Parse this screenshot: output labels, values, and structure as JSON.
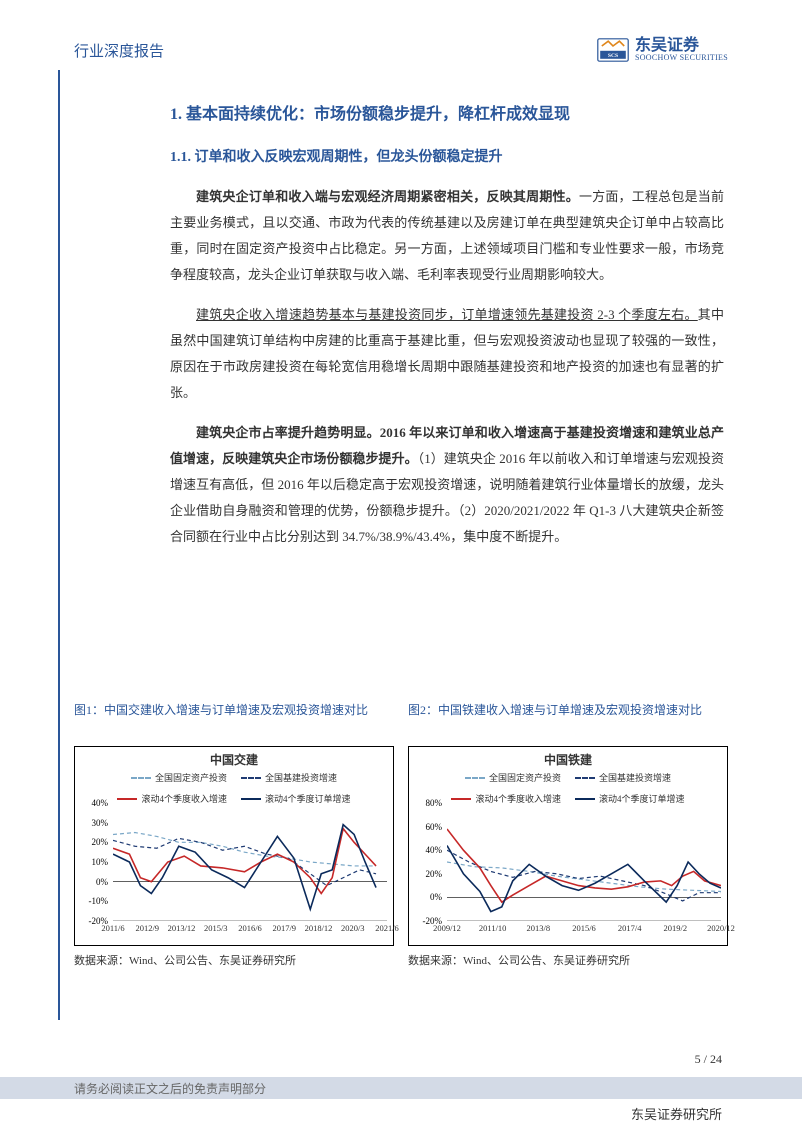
{
  "header": {
    "title": "行业深度报告",
    "logo_cn": "东吴证券",
    "logo_en": "SOOCHOW SECURITIES"
  },
  "headings": {
    "h1": "1.   基本面持续优化：市场份额稳步提升，降杠杆成效显现",
    "h2": "1.1.   订单和收入反映宏观周期性，但龙头份额稳定提升"
  },
  "paras": {
    "p1_b": "建筑央企订单和收入端与宏观经济周期紧密相关，反映其周期性。",
    "p1_t": "一方面，工程总包是当前主要业务模式，且以交通、市政为代表的传统基建以及房建订单在典型建筑央企订单中占较高比重，同时在固定资产投资中占比稳定。另一方面，上述领域项目门槛和专业性要求一般，市场竞争程度较高，龙头企业订单获取与收入端、毛利率表现受行业周期影响较大。",
    "p2_u": "建筑央企收入增速趋势基本与基建投资同步，订单增速领先基建投资 2-3 个季度左右。",
    "p2_t": "其中虽然中国建筑订单结构中房建的比重高于基建比重，但与宏观投资波动也显现了较强的一致性，原因在于市政房建投资在每轮宽信用稳增长周期中跟随基建投资和地产投资的加速也有显著的扩张。",
    "p3_b": "建筑央企市占率提升趋势明显。2016 年以来订单和收入增速高于基建投资增速和建筑业总产值增速，反映建筑央企市场份额稳步提升。",
    "p3_t": "（1）建筑央企 2016 年以前收入和订单增速与宏观投资增速互有高低，但 2016 年以后稳定高于宏观投资增速，说明随着建筑行业体量增长的放缓，龙头企业借助自身融资和管理的优势，份额稳步提升。（2）2020/2021/2022 年 Q1-3 八大建筑央企新签合同额在行业中占比分别达到 34.7%/38.9%/43.4%，集中度不断提升。"
  },
  "figs": {
    "f1": {
      "caption": "图1：中国交建收入增速与订单增速及宏观投资增速对比",
      "title": "中国交建",
      "legend": {
        "a": "全国固定资产投资",
        "b": "全国基建投资增速",
        "c": "滚动4个季度收入增速",
        "d": "滚动4个季度订单增速"
      },
      "colors": {
        "a": "#7aa7c7",
        "b": "#1f3b73",
        "c": "#c62828",
        "d": "#0b2a5b"
      },
      "yticks": [
        "-20%",
        "-10%",
        "0%",
        "10%",
        "20%",
        "30%",
        "40%"
      ],
      "xticks": [
        "2011/6",
        "2012/9",
        "2013/12",
        "2015/3",
        "2016/6",
        "2017/9",
        "2018/12",
        "2020/3",
        "2021/6"
      ],
      "ymin": -20,
      "ymax": 40,
      "s_a": [
        [
          0,
          24
        ],
        [
          8,
          25
        ],
        [
          16,
          23
        ],
        [
          24,
          20
        ],
        [
          32,
          20
        ],
        [
          40,
          18
        ],
        [
          48,
          15
        ],
        [
          56,
          13
        ],
        [
          64,
          12
        ],
        [
          72,
          10
        ],
        [
          80,
          9
        ],
        [
          88,
          8
        ],
        [
          96,
          8
        ]
      ],
      "s_b": [
        [
          0,
          21
        ],
        [
          8,
          18
        ],
        [
          16,
          17
        ],
        [
          24,
          22
        ],
        [
          32,
          20
        ],
        [
          40,
          16
        ],
        [
          48,
          18
        ],
        [
          56,
          14
        ],
        [
          64,
          12
        ],
        [
          72,
          4
        ],
        [
          78,
          -2
        ],
        [
          84,
          2
        ],
        [
          90,
          6
        ],
        [
          96,
          4
        ]
      ],
      "s_c": [
        [
          0,
          17
        ],
        [
          6,
          14
        ],
        [
          10,
          2
        ],
        [
          14,
          0
        ],
        [
          20,
          10
        ],
        [
          26,
          13
        ],
        [
          32,
          8
        ],
        [
          40,
          7
        ],
        [
          48,
          5
        ],
        [
          54,
          10
        ],
        [
          60,
          14
        ],
        [
          66,
          10
        ],
        [
          72,
          2
        ],
        [
          76,
          -6
        ],
        [
          80,
          2
        ],
        [
          84,
          27
        ],
        [
          88,
          20
        ],
        [
          92,
          14
        ],
        [
          96,
          8
        ]
      ],
      "s_d": [
        [
          0,
          14
        ],
        [
          6,
          10
        ],
        [
          10,
          -2
        ],
        [
          14,
          -6
        ],
        [
          18,
          2
        ],
        [
          24,
          18
        ],
        [
          30,
          15
        ],
        [
          36,
          6
        ],
        [
          42,
          2
        ],
        [
          48,
          -3
        ],
        [
          54,
          10
        ],
        [
          60,
          23
        ],
        [
          66,
          12
        ],
        [
          72,
          -14
        ],
        [
          76,
          4
        ],
        [
          80,
          6
        ],
        [
          84,
          29
        ],
        [
          88,
          24
        ],
        [
          92,
          10
        ],
        [
          96,
          -3
        ]
      ],
      "source": "数据来源：Wind、公司公告、东吴证券研究所"
    },
    "f2": {
      "caption": "图2：中国铁建收入增速与订单增速及宏观投资增速对比",
      "title": "中国铁建",
      "legend": {
        "a": "全国固定资产投资",
        "b": "全国基建投资增速",
        "c": "滚动4个季度收入增速",
        "d": "滚动4个季度订单增速"
      },
      "colors": {
        "a": "#7aa7c7",
        "b": "#1f3b73",
        "c": "#c62828",
        "d": "#0b2a5b"
      },
      "yticks": [
        "-20%",
        "0%",
        "20%",
        "40%",
        "60%",
        "80%"
      ],
      "xticks": [
        "2009/12",
        "2011/10",
        "2013/8",
        "2015/6",
        "2017/4",
        "2019/2",
        "2020/12"
      ],
      "ymin": -20,
      "ymax": 80,
      "s_a": [
        [
          0,
          30
        ],
        [
          10,
          26
        ],
        [
          20,
          25
        ],
        [
          30,
          22
        ],
        [
          40,
          18
        ],
        [
          50,
          15
        ],
        [
          60,
          12
        ],
        [
          70,
          9
        ],
        [
          80,
          7
        ],
        [
          90,
          6
        ],
        [
          100,
          5
        ]
      ],
      "s_b": [
        [
          0,
          40
        ],
        [
          8,
          30
        ],
        [
          16,
          22
        ],
        [
          24,
          17
        ],
        [
          32,
          22
        ],
        [
          40,
          20
        ],
        [
          48,
          16
        ],
        [
          56,
          18
        ],
        [
          64,
          14
        ],
        [
          72,
          10
        ],
        [
          80,
          3
        ],
        [
          86,
          -3
        ],
        [
          92,
          4
        ],
        [
          100,
          4
        ]
      ],
      "s_c": [
        [
          0,
          58
        ],
        [
          6,
          40
        ],
        [
          12,
          25
        ],
        [
          16,
          10
        ],
        [
          20,
          -4
        ],
        [
          24,
          2
        ],
        [
          30,
          10
        ],
        [
          36,
          18
        ],
        [
          42,
          14
        ],
        [
          48,
          10
        ],
        [
          54,
          8
        ],
        [
          60,
          7
        ],
        [
          66,
          9
        ],
        [
          72,
          13
        ],
        [
          78,
          14
        ],
        [
          82,
          10
        ],
        [
          86,
          18
        ],
        [
          90,
          22
        ],
        [
          94,
          14
        ],
        [
          100,
          10
        ]
      ],
      "s_d": [
        [
          0,
          44
        ],
        [
          6,
          20
        ],
        [
          12,
          5
        ],
        [
          16,
          -12
        ],
        [
          20,
          -8
        ],
        [
          24,
          14
        ],
        [
          30,
          28
        ],
        [
          36,
          18
        ],
        [
          42,
          10
        ],
        [
          48,
          6
        ],
        [
          54,
          12
        ],
        [
          60,
          20
        ],
        [
          66,
          28
        ],
        [
          72,
          14
        ],
        [
          76,
          5
        ],
        [
          80,
          -4
        ],
        [
          84,
          10
        ],
        [
          88,
          30
        ],
        [
          92,
          20
        ],
        [
          96,
          12
        ],
        [
          100,
          8
        ]
      ],
      "source": "数据来源：Wind、公司公告、东吴证券研究所"
    }
  },
  "footer": {
    "disclaimer": "请务必阅读正文之后的免责声明部分",
    "pagenum": "5 / 24",
    "right": "东吴证券研究所"
  }
}
